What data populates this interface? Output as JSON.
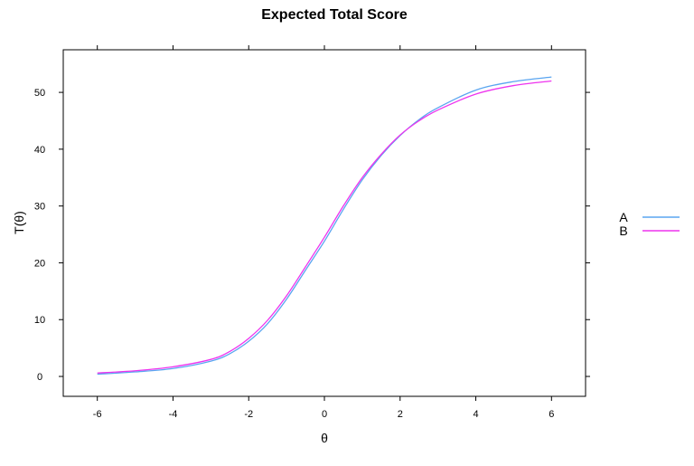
{
  "chart_data": {
    "type": "line",
    "title": "Expected Total Score",
    "xlabel": "θ",
    "ylabel": "T(θ)",
    "xlim": [
      -6.9,
      6.9
    ],
    "ylim": [
      -3.5,
      57.5
    ],
    "x_ticks": [
      -6,
      -4,
      -2,
      0,
      2,
      4,
      6
    ],
    "x_tick_labels": [
      "-6",
      "-4",
      "-2",
      "0",
      "2",
      "4",
      "6"
    ],
    "y_ticks": [
      0,
      10,
      20,
      30,
      40,
      50
    ],
    "y_tick_labels": [
      "0",
      "10",
      "20",
      "30",
      "40",
      "50"
    ],
    "grid": false,
    "legend_position": "right",
    "x": [
      -6,
      -5,
      -4,
      -3,
      -2.5,
      -2,
      -1.5,
      -1,
      -0.5,
      0,
      0.5,
      1,
      1.5,
      2,
      2.5,
      3,
      4,
      5,
      6
    ],
    "series": [
      {
        "name": "A",
        "color": "#5aa5f0",
        "values": [
          0.4,
          0.8,
          1.4,
          2.7,
          4.0,
          6.2,
          9.3,
          13.6,
          18.7,
          23.8,
          29.4,
          34.6,
          38.9,
          42.4,
          45.2,
          47.3,
          50.4,
          51.9,
          52.7
        ]
      },
      {
        "name": "B",
        "color": "#ee33ee",
        "values": [
          0.6,
          1.0,
          1.7,
          3.0,
          4.4,
          6.7,
          9.9,
          14.2,
          19.3,
          24.5,
          30.0,
          35.0,
          39.1,
          42.5,
          45.0,
          46.9,
          49.7,
          51.2,
          52.0
        ]
      }
    ]
  }
}
